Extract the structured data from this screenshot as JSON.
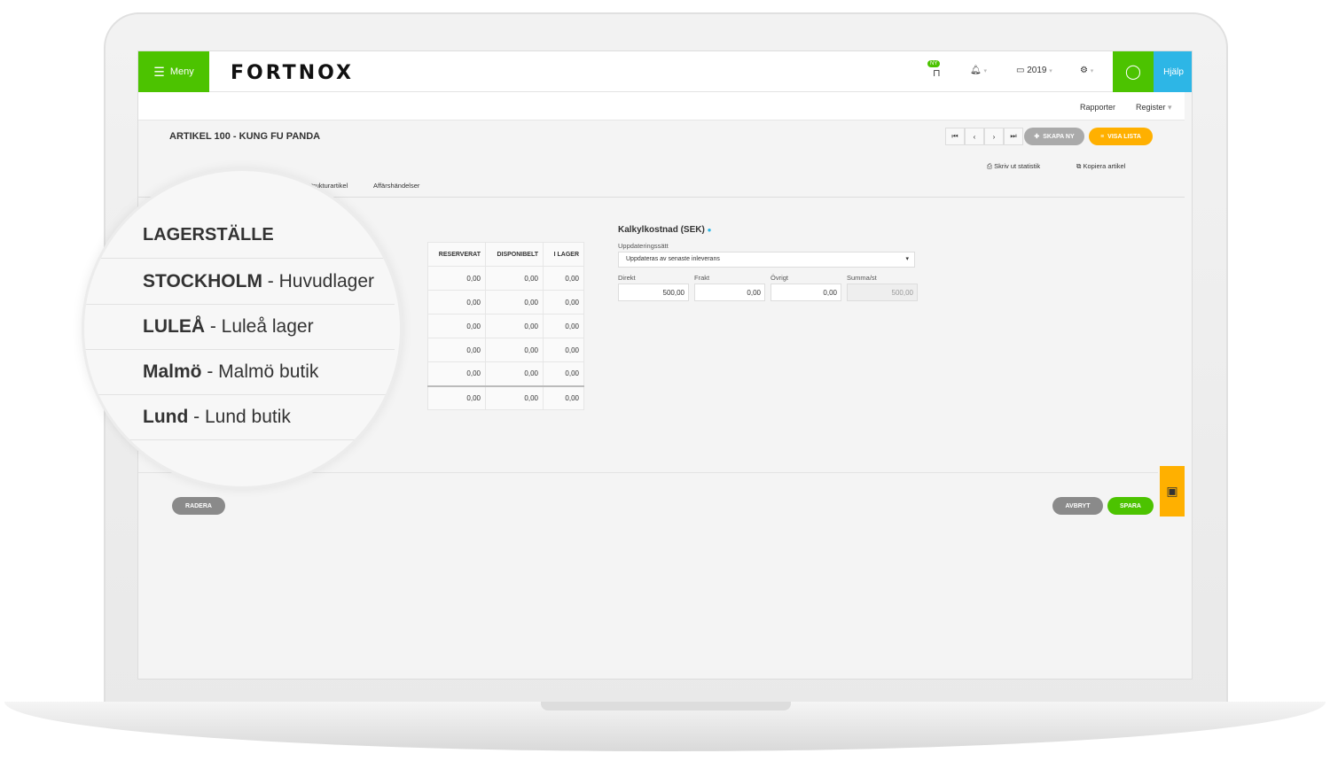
{
  "header": {
    "menu_label": "Meny",
    "logo": "FORTNOX",
    "new_badge": "NY",
    "year": "2019",
    "help": "Hjälp"
  },
  "subnav": {
    "reports": "Rapporter",
    "register": "Register"
  },
  "page": {
    "title": "ARTIKEL 100 - KUNG FU PANDA",
    "create_new": "SKAPA NY",
    "show_list": "VISA LISTA",
    "print_stats": "Skriv ut statistik",
    "copy_article": "Kopiera artikel"
  },
  "tabs": [
    "Strukturartikel",
    "Affärshändelser"
  ],
  "stock_table": {
    "columns": [
      "RESERVERAT",
      "DISPONIBELT",
      "I LAGER"
    ],
    "rows": [
      [
        "0,00",
        "0,00",
        "0,00"
      ],
      [
        "0,00",
        "0,00",
        "0,00"
      ],
      [
        "0,00",
        "0,00",
        "0,00"
      ],
      [
        "0,00",
        "0,00",
        "0,00"
      ],
      [
        "0,00",
        "0,00",
        "0,00"
      ]
    ],
    "total": [
      "0,00",
      "0,00",
      "0,00"
    ]
  },
  "magnifier": {
    "header": "LAGERSTÄLLE",
    "locations": [
      {
        "code": "STOCKHOLM",
        "name": " - Huvudlager"
      },
      {
        "code": "LULEÅ",
        "name": " - Luleå lager"
      },
      {
        "code": "Malmö",
        "name": " - Malmö butik"
      },
      {
        "code": "Lund",
        "name": " - Lund butik"
      }
    ]
  },
  "cost": {
    "title": "Kalkylkostnad (SEK)",
    "update_label": "Uppdateringssätt",
    "update_value": "Uppdateras av senaste inleverans",
    "direct_label": "Direkt",
    "direct": "500,00",
    "freight_label": "Frakt",
    "freight": "0,00",
    "other_label": "Övrigt",
    "other": "0,00",
    "sum_label": "Summa/st",
    "sum": "500,00"
  },
  "footer": {
    "delete": "RADERA",
    "cancel": "AVBRYT",
    "save": "SPARA"
  },
  "colors": {
    "green": "#4cc300",
    "blue": "#2db6e6",
    "orange": "#ffb000",
    "grey": "#8a8a8a"
  }
}
